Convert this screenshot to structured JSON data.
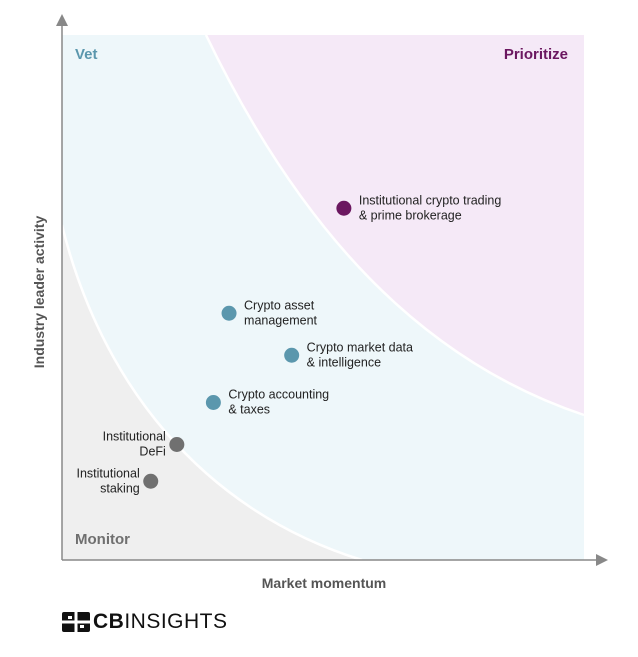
{
  "chart_data": {
    "type": "scatter",
    "title": "",
    "xlabel": "Market momentum",
    "ylabel": "Industry leader activity",
    "xlim": [
      0,
      100
    ],
    "ylim": [
      0,
      100
    ],
    "grid": false,
    "zones": [
      {
        "name": "Vet",
        "color": "#eef7fa",
        "label_color": "#5b97ad"
      },
      {
        "name": "Prioritize",
        "color": "#f5e9f7",
        "label_color": "#6b1760"
      },
      {
        "name": "Monitor",
        "color": "#efefef",
        "label_color": "#6f6f6f"
      }
    ],
    "points": [
      {
        "label": [
          "Institutional crypto trading",
          "& prime brokerage"
        ],
        "x": 54,
        "y": 67,
        "zone": "Prioritize",
        "color": "#6b1760",
        "label_side": "right"
      },
      {
        "label": [
          "Crypto asset",
          "management"
        ],
        "x": 32,
        "y": 47,
        "zone": "Vet",
        "color": "#5b97ad",
        "label_side": "right"
      },
      {
        "label": [
          "Crypto market data",
          "& intelligence"
        ],
        "x": 44,
        "y": 39,
        "zone": "Vet",
        "color": "#5b97ad",
        "label_side": "right"
      },
      {
        "label": [
          "Crypto accounting",
          "& taxes"
        ],
        "x": 29,
        "y": 30,
        "zone": "Vet",
        "color": "#5b97ad",
        "label_side": "right"
      },
      {
        "label": [
          "Institutional",
          "DeFi"
        ],
        "x": 22,
        "y": 22,
        "zone": "Monitor",
        "color": "#707070",
        "label_side": "left"
      },
      {
        "label": [
          "Institutional",
          "staking"
        ],
        "x": 17,
        "y": 15,
        "zone": "Monitor",
        "color": "#707070",
        "label_side": "left"
      }
    ]
  },
  "branding": {
    "logo_bold": "CB",
    "logo_rest": "INSIGHTS"
  }
}
